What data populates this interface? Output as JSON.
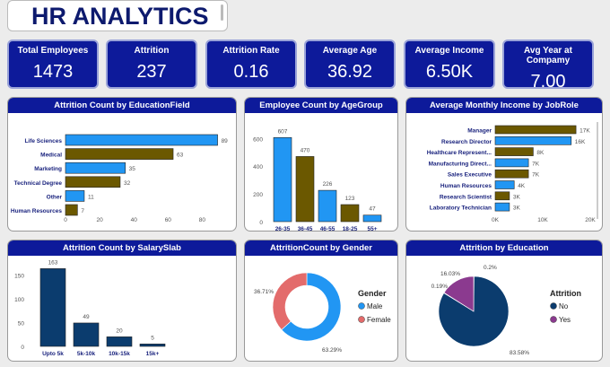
{
  "title": "HR ANALYTICS",
  "kpis": [
    {
      "label": "Total Employees",
      "value": "1473"
    },
    {
      "label": "Attrition",
      "value": "237"
    },
    {
      "label": "Attrition Rate",
      "value": "0.16"
    },
    {
      "label": "Average Age",
      "value": "36.92"
    },
    {
      "label": "Average Income",
      "value": "6.50K"
    },
    {
      "label": "Avg Year at Compamy",
      "value": "7.00"
    }
  ],
  "colors": {
    "blue": "#2196f3",
    "olive": "#6b5800",
    "navy": "#0b3c6e",
    "purple": "#8b3a8f",
    "salmon": "#e36b6b",
    "header": "#0d1a9a"
  },
  "chart_data": [
    {
      "title": "Attrition Count by EducationField",
      "type": "bar",
      "orientation": "horizontal",
      "categories": [
        "Life Sciences",
        "Medical",
        "Marketing",
        "Technical Degree",
        "Other",
        "Human Resources"
      ],
      "values": [
        89,
        63,
        35,
        32,
        11,
        7
      ],
      "labels": [
        "89",
        "63",
        "35",
        "32",
        "11",
        "7"
      ],
      "xticks": [
        "0",
        "20",
        "40",
        "60",
        "80"
      ],
      "xlim": [
        0,
        95
      ]
    },
    {
      "title": "Employee Count by AgeGroup",
      "type": "bar",
      "categories": [
        "26-35",
        "36-45",
        "46-55",
        "18-25",
        "55+"
      ],
      "values": [
        607,
        470,
        226,
        123,
        47
      ],
      "labels": [
        "607",
        "470",
        "226",
        "123",
        "47"
      ],
      "yticks": [
        "0",
        "200",
        "400",
        "600"
      ],
      "ylim": [
        0,
        680
      ]
    },
    {
      "title": "Average Monthly Income by JobRole",
      "type": "bar",
      "orientation": "horizontal",
      "categories": [
        "Manager",
        "Research Director",
        "Healthcare Represent...",
        "Manufacturing Direct...",
        "Sales Executive",
        "Human Resources",
        "Research Scientist",
        "Laboratory Technician"
      ],
      "values": [
        17,
        16,
        8,
        7,
        7,
        4,
        3,
        3
      ],
      "labels": [
        "17K",
        "16K",
        "8K",
        "7K",
        "7K",
        "4K",
        "3K",
        "3K"
      ],
      "xticks": [
        "0K",
        "10K",
        "20K"
      ],
      "xlim": [
        0,
        20
      ]
    },
    {
      "title": "Attrition Count by SalarySlab",
      "type": "bar",
      "categories": [
        "Upto 5k",
        "5k-10k",
        "10k-15k",
        "15k+"
      ],
      "values": [
        163,
        49,
        20,
        5
      ],
      "labels": [
        "163",
        "49",
        "20",
        "5"
      ],
      "yticks": [
        "0",
        "50",
        "100",
        "150"
      ],
      "ylim": [
        0,
        175
      ]
    },
    {
      "title": "AttritionCount by Gender",
      "type": "pie",
      "donut": true,
      "legend_title": "Gender",
      "slices": [
        {
          "name": "Male",
          "value": 63.29,
          "label": "63.29%"
        },
        {
          "name": "Female",
          "value": 36.71,
          "label": "36.71%"
        }
      ]
    },
    {
      "title": "Attrition by Education",
      "type": "pie",
      "legend_title": "Attrition",
      "legend": [
        "No",
        "Yes"
      ],
      "slices": [
        {
          "name": "No",
          "value": 0.2,
          "label": "0.2%"
        },
        {
          "name": "No",
          "value": 83.58,
          "label": "83.58%"
        },
        {
          "name": "Yes",
          "value": 0.19,
          "label": "0.19%"
        },
        {
          "name": "Yes",
          "value": 16.03,
          "label": "16.03%"
        }
      ]
    }
  ]
}
